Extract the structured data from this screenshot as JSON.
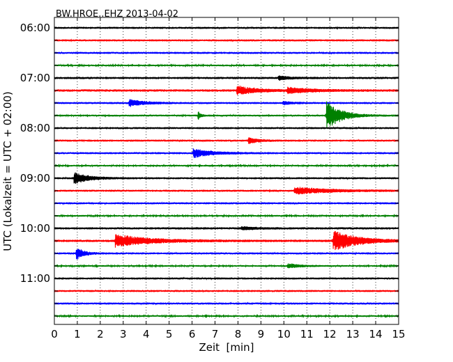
{
  "chart_data": {
    "type": "line",
    "title": "BW.HROE..EHZ 2013-04-02",
    "xlabel": "Zeit  [min]",
    "ylabel": "UTC (Lokalzeit = UTC + 02:00)",
    "xlim": [
      0,
      15
    ],
    "x_ticks": [
      "0",
      "1",
      "2",
      "3",
      "4",
      "5",
      "6",
      "7",
      "8",
      "9",
      "10",
      "11",
      "12",
      "13",
      "14",
      "15"
    ],
    "y_tick_labels": [
      "06:00",
      "07:00",
      "08:00",
      "09:00",
      "10:00",
      "11:00"
    ],
    "grid": "vertical dotted",
    "trace_colors": [
      "#000000",
      "#ff0000",
      "#0000ff",
      "#008000"
    ],
    "row_minutes": 15,
    "traces": [
      {
        "start": "06:00",
        "noise": 1.0,
        "events": []
      },
      {
        "start": "06:15",
        "noise": 1.0,
        "events": []
      },
      {
        "start": "06:30",
        "noise": 1.0,
        "events": []
      },
      {
        "start": "06:45",
        "noise": 0.8,
        "events": []
      },
      {
        "start": "07:00",
        "noise": 1.1,
        "events": [
          {
            "t": 9.8,
            "amp": 2.5,
            "dur": 0.5
          }
        ]
      },
      {
        "start": "07:15",
        "noise": 1.2,
        "events": [
          {
            "t": 8.0,
            "amp": 6,
            "dur": 0.8
          },
          {
            "t": 10.2,
            "amp": 4,
            "dur": 1.0
          }
        ]
      },
      {
        "start": "07:30",
        "noise": 1.0,
        "events": [
          {
            "t": 3.3,
            "amp": 5,
            "dur": 0.6
          },
          {
            "t": 10.0,
            "amp": 2,
            "dur": 0.4
          }
        ]
      },
      {
        "start": "07:45",
        "noise": 0.9,
        "events": [
          {
            "t": 6.3,
            "amp": 5,
            "dur": 0.1
          },
          {
            "t": 11.9,
            "amp": 20,
            "dur": 0.6
          }
        ]
      },
      {
        "start": "08:00",
        "noise": 1.0,
        "events": []
      },
      {
        "start": "08:15",
        "noise": 1.0,
        "events": [
          {
            "t": 8.5,
            "amp": 4,
            "dur": 0.4
          }
        ]
      },
      {
        "start": "08:30",
        "noise": 1.0,
        "events": [
          {
            "t": 6.1,
            "amp": 6,
            "dur": 0.8
          }
        ]
      },
      {
        "start": "08:45",
        "noise": 0.8,
        "events": []
      },
      {
        "start": "09:00",
        "noise": 1.0,
        "events": [
          {
            "t": 0.9,
            "amp": 8,
            "dur": 0.6
          }
        ]
      },
      {
        "start": "09:15",
        "noise": 1.0,
        "events": [
          {
            "t": 10.5,
            "amp": 5,
            "dur": 1.5
          }
        ]
      },
      {
        "start": "09:30",
        "noise": 1.0,
        "events": []
      },
      {
        "start": "09:45",
        "noise": 0.8,
        "events": []
      },
      {
        "start": "10:00",
        "noise": 1.1,
        "events": [
          {
            "t": 8.2,
            "amp": 2,
            "dur": 0.6
          }
        ]
      },
      {
        "start": "10:15",
        "noise": 1.2,
        "events": [
          {
            "t": 2.7,
            "amp": 9,
            "dur": 1.4
          },
          {
            "t": 12.2,
            "amp": 14,
            "dur": 1.0
          }
        ]
      },
      {
        "start": "10:30",
        "noise": 1.0,
        "events": [
          {
            "t": 1.0,
            "amp": 8,
            "dur": 0.3
          }
        ]
      },
      {
        "start": "10:45",
        "noise": 0.8,
        "events": [
          {
            "t": 10.2,
            "amp": 3,
            "dur": 0.6
          }
        ]
      },
      {
        "start": "11:00",
        "noise": 1.0,
        "events": []
      },
      {
        "start": "11:15",
        "noise": 1.0,
        "events": []
      },
      {
        "start": "11:30",
        "noise": 1.0,
        "events": []
      },
      {
        "start": "11:45",
        "noise": 0.8,
        "events": []
      }
    ]
  }
}
